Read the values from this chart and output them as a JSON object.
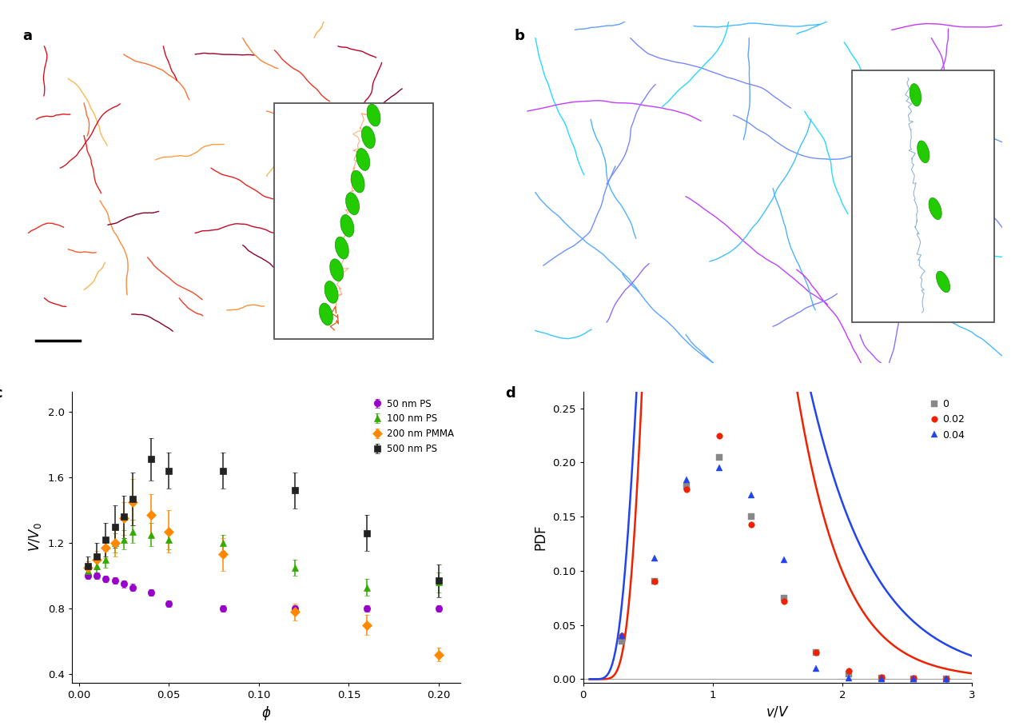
{
  "panel_c": {
    "50nm_PS": {
      "phi": [
        0.005,
        0.01,
        0.015,
        0.02,
        0.025,
        0.03,
        0.04,
        0.05,
        0.08,
        0.12,
        0.16,
        0.2
      ],
      "VV0": [
        1.0,
        1.0,
        0.98,
        0.97,
        0.95,
        0.93,
        0.9,
        0.83,
        0.8,
        0.8,
        0.8,
        0.8
      ],
      "err": [
        0.02,
        0.02,
        0.02,
        0.02,
        0.02,
        0.02,
        0.02,
        0.02,
        0.02,
        0.02,
        0.02,
        0.02
      ],
      "color": "#9900CC",
      "marker": "o"
    },
    "100nm_PS": {
      "phi": [
        0.005,
        0.01,
        0.015,
        0.02,
        0.025,
        0.03,
        0.04,
        0.05,
        0.08,
        0.12,
        0.16,
        0.2
      ],
      "VV0": [
        1.03,
        1.06,
        1.1,
        1.2,
        1.22,
        1.27,
        1.25,
        1.22,
        1.2,
        1.05,
        0.93,
        0.96
      ],
      "err": [
        0.03,
        0.04,
        0.05,
        0.06,
        0.06,
        0.07,
        0.07,
        0.06,
        0.05,
        0.05,
        0.05,
        0.06
      ],
      "color": "#33AA00",
      "marker": "^"
    },
    "200nm_PMMA": {
      "phi": [
        0.005,
        0.01,
        0.015,
        0.02,
        0.025,
        0.03,
        0.04,
        0.05,
        0.08,
        0.12,
        0.16,
        0.2
      ],
      "VV0": [
        1.05,
        1.1,
        1.17,
        1.2,
        1.35,
        1.45,
        1.37,
        1.27,
        1.13,
        0.78,
        0.7,
        0.52
      ],
      "err": [
        0.04,
        0.05,
        0.06,
        0.08,
        0.1,
        0.14,
        0.13,
        0.13,
        0.1,
        0.05,
        0.06,
        0.04
      ],
      "color": "#FF8800",
      "marker": "D"
    },
    "500nm_PS": {
      "phi": [
        0.005,
        0.01,
        0.015,
        0.02,
        0.025,
        0.03,
        0.04,
        0.05,
        0.08,
        0.12,
        0.16,
        0.2
      ],
      "VV0": [
        1.06,
        1.12,
        1.22,
        1.3,
        1.36,
        1.47,
        1.71,
        1.64,
        1.64,
        1.52,
        1.26,
        0.97
      ],
      "err": [
        0.06,
        0.08,
        0.1,
        0.13,
        0.13,
        0.16,
        0.13,
        0.11,
        0.11,
        0.11,
        0.11,
        0.1
      ],
      "color": "#222222",
      "marker": "s"
    }
  },
  "panel_d": {
    "gray_phi0": {
      "x": [
        0.3,
        0.55,
        0.8,
        1.05,
        1.3,
        1.55,
        1.8,
        2.05,
        2.3,
        2.55,
        2.8
      ],
      "y": [
        0.035,
        0.09,
        0.178,
        0.205,
        0.15,
        0.075,
        0.025,
        0.005,
        0.001,
        0.0005,
        0.0002
      ],
      "color": "#888888",
      "marker": "s"
    },
    "red_phi002": {
      "x": [
        0.3,
        0.55,
        0.8,
        1.05,
        1.3,
        1.55,
        1.8,
        2.05,
        2.3,
        2.55,
        2.8
      ],
      "y": [
        0.04,
        0.09,
        0.175,
        0.225,
        0.143,
        0.072,
        0.025,
        0.008,
        0.002,
        0.001,
        0.0003
      ],
      "color": "#EE2200",
      "marker": "o"
    },
    "blue_phi004": {
      "x": [
        0.3,
        0.55,
        0.8,
        1.05,
        1.3,
        1.55,
        1.8,
        2.05,
        2.3,
        2.55,
        2.8
      ],
      "y": [
        0.04,
        0.112,
        0.184,
        0.195,
        0.17,
        0.11,
        0.01,
        0.001,
        0.0005,
        0.0002,
        0.0001
      ],
      "color": "#2244EE",
      "marker": "^"
    },
    "red_fit_mu": 0.0,
    "red_fit_sigma": 0.38,
    "blue_fit_mu": 0.05,
    "blue_fit_sigma": 0.46
  }
}
